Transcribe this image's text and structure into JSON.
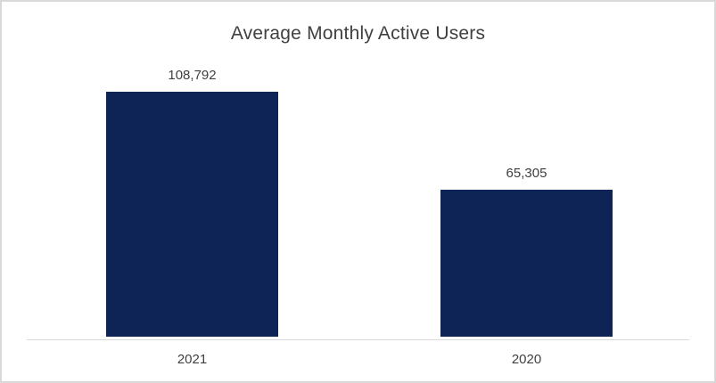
{
  "chart_data": {
    "type": "bar",
    "title": "Average Monthly Active Users",
    "categories": [
      "2021",
      "2020"
    ],
    "values": [
      108792,
      65305
    ],
    "value_labels": [
      "108,792",
      "65,305"
    ],
    "bar_color": "#0e2457",
    "axis_color": "#d9d9d9",
    "title_color": "#404040",
    "label_color": "#404040",
    "ylim": [
      0,
      120000
    ],
    "grid": false,
    "legend": "none",
    "xlabel": "",
    "ylabel": ""
  }
}
